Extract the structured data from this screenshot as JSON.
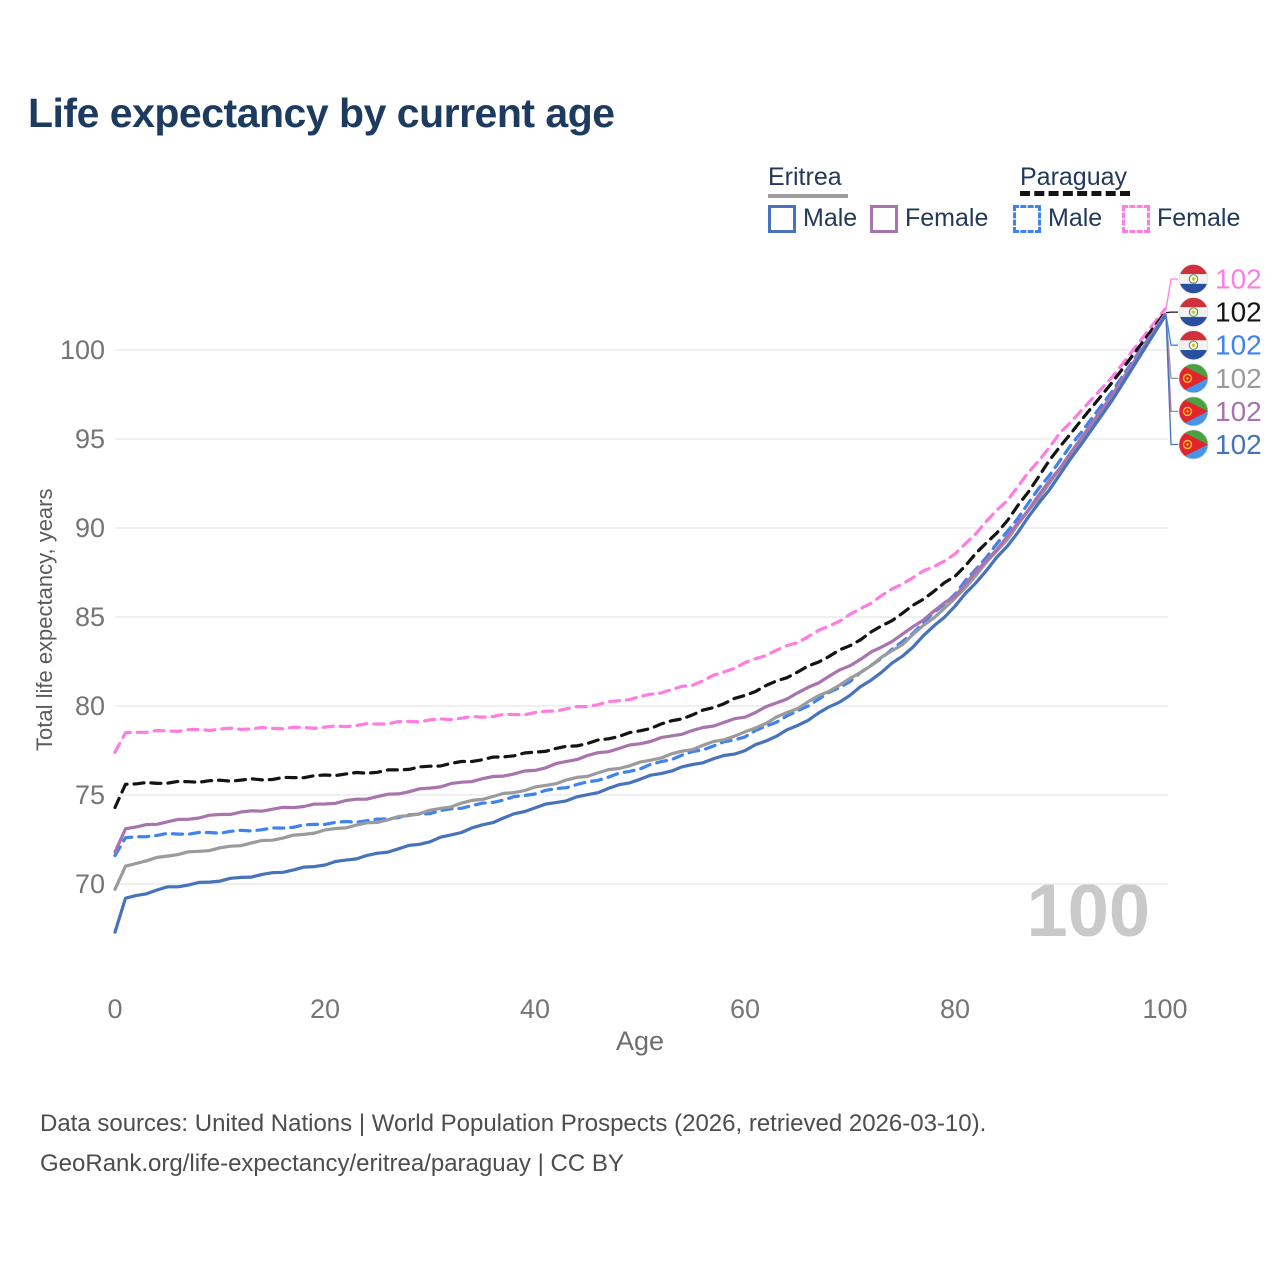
{
  "title": "Life expectancy by current age",
  "watermark_age": "100",
  "legend": {
    "groups": [
      {
        "label": "Eritrea",
        "line_style": "solid",
        "underline_color": "#9e9e9e",
        "items": [
          {
            "label": "Male",
            "color": "#4673bb",
            "dashed": false
          },
          {
            "label": "Female",
            "color": "#a973ad",
            "dashed": false
          }
        ]
      },
      {
        "label": "Paraguay",
        "line_style": "dashed",
        "underline_color": "#141414",
        "items": [
          {
            "label": "Male",
            "color": "#3f82f0",
            "dashed": true
          },
          {
            "label": "Female",
            "color": "#ff7ce0",
            "dashed": true
          }
        ]
      }
    ]
  },
  "chart_data": {
    "type": "line",
    "title": "Life expectancy by current age",
    "xlabel": "Age",
    "ylabel": "Total life expectancy, years",
    "x": [
      0,
      1,
      5,
      10,
      15,
      20,
      25,
      30,
      35,
      40,
      45,
      50,
      55,
      60,
      65,
      70,
      75,
      80,
      85,
      90,
      95,
      100
    ],
    "xticks": [
      0,
      20,
      40,
      60,
      80,
      100
    ],
    "yticks": [
      70,
      75,
      80,
      85,
      90,
      95,
      100
    ],
    "xlim": [
      0,
      100
    ],
    "ylim": [
      66,
      103
    ],
    "grid": "horizontal",
    "legend_position": "top-right",
    "series": [
      {
        "name": "Paraguay Female",
        "country": "Paraguay",
        "sex": "Female",
        "flag": "paraguay",
        "color": "#ff7ce0",
        "dashed": true,
        "end_label": "102",
        "values": [
          77.4,
          78.5,
          78.6,
          78.7,
          78.75,
          78.8,
          79.0,
          79.2,
          79.4,
          79.6,
          80.0,
          80.5,
          81.2,
          82.4,
          83.6,
          85.1,
          86.9,
          88.5,
          91.6,
          95.3,
          98.5,
          102.3
        ]
      },
      {
        "name": "Paraguay Both sexes",
        "country": "Paraguay",
        "sex": "Both",
        "flag": "paraguay",
        "color": "#141414",
        "dashed": true,
        "end_label": "102",
        "values": [
          74.3,
          75.6,
          75.7,
          75.8,
          75.9,
          76.1,
          76.3,
          76.6,
          77.0,
          77.4,
          77.9,
          78.6,
          79.5,
          80.6,
          81.9,
          83.4,
          85.2,
          87.3,
          90.4,
          94.6,
          98.2,
          102.1
        ]
      },
      {
        "name": "Paraguay Male",
        "country": "Paraguay",
        "sex": "Male",
        "flag": "paraguay",
        "color": "#3f82f0",
        "dashed": true,
        "end_label": "102",
        "values": [
          71.6,
          72.6,
          72.8,
          72.9,
          73.1,
          73.4,
          73.6,
          74.0,
          74.5,
          75.1,
          75.7,
          76.5,
          77.4,
          78.3,
          79.7,
          81.4,
          83.6,
          86.3,
          89.8,
          93.8,
          97.7,
          102.0
        ]
      },
      {
        "name": "Eritrea Both sexes",
        "country": "Eritrea",
        "sex": "Both",
        "flag": "eritrea",
        "color": "#9b9b9b",
        "dashed": false,
        "end_label": "102",
        "values": [
          69.7,
          71.0,
          71.6,
          72.0,
          72.5,
          73.0,
          73.5,
          74.1,
          74.8,
          75.4,
          76.1,
          76.8,
          77.6,
          78.5,
          79.9,
          81.5,
          83.5,
          86.0,
          89.4,
          93.3,
          97.4,
          102.0
        ]
      },
      {
        "name": "Eritrea Female",
        "country": "Eritrea",
        "sex": "Female",
        "flag": "eritrea",
        "color": "#a973ad",
        "dashed": false,
        "end_label": "102",
        "values": [
          71.8,
          73.1,
          73.5,
          73.9,
          74.2,
          74.5,
          74.9,
          75.4,
          75.9,
          76.4,
          77.2,
          77.9,
          78.6,
          79.4,
          80.7,
          82.3,
          84.0,
          86.2,
          89.5,
          93.4,
          97.5,
          102.0
        ]
      },
      {
        "name": "Eritrea Male",
        "country": "Eritrea",
        "sex": "Male",
        "flag": "eritrea",
        "color": "#4673bb",
        "dashed": false,
        "end_label": "102",
        "values": [
          67.3,
          69.2,
          69.8,
          70.2,
          70.6,
          71.1,
          71.7,
          72.4,
          73.3,
          74.3,
          75.0,
          75.9,
          76.7,
          77.5,
          78.9,
          80.6,
          82.8,
          85.6,
          89.0,
          93.0,
          97.2,
          101.9
        ]
      }
    ]
  },
  "footer": {
    "line1": "Data sources: United Nations | World Population Prospects (2026, retrieved 2026-03-10).",
    "line2": "GeoRank.org/life-expectancy/eritrea/paraguay | CC BY"
  }
}
